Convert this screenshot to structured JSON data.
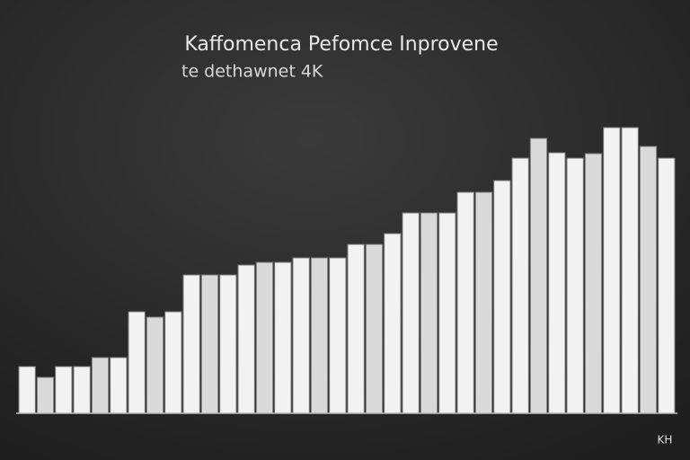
{
  "chart_data": {
    "type": "bar",
    "title": "Kaffomenca Pefomce Inprovene",
    "subtitle": "te dethawnet 4K",
    "corner_label": "KH",
    "color": "#f2f2f2",
    "ylim": [
      0,
      330
    ],
    "values": [
      52,
      40,
      52,
      52,
      62,
      62,
      113,
      107,
      113,
      154,
      154,
      154,
      165,
      168,
      168,
      173,
      173,
      173,
      188,
      188,
      200,
      223,
      223,
      223,
      246,
      246,
      259,
      284,
      306,
      290,
      284,
      289,
      318,
      318,
      297,
      284
    ]
  }
}
